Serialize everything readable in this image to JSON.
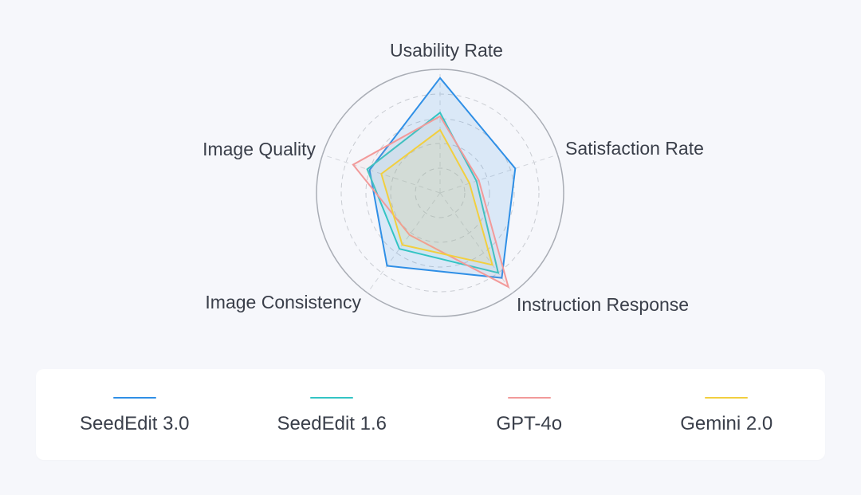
{
  "chart_data": {
    "type": "radar",
    "axes": [
      "Usability Rate",
      "Satisfaction Rate",
      "Instruction Response",
      "Image Consistency",
      "Image Quality"
    ],
    "series": [
      {
        "name": "SeedEdit 3.0",
        "color": "#2f8fe6",
        "values": [
          0.93,
          0.64,
          0.85,
          0.73,
          0.6
        ]
      },
      {
        "name": "SeedEdit 1.6",
        "color": "#33c4c4",
        "values": [
          0.65,
          0.31,
          0.8,
          0.56,
          0.62
        ]
      },
      {
        "name": "GPT-4o",
        "color": "#f29a9a",
        "values": [
          0.62,
          0.33,
          0.94,
          0.42,
          0.74
        ]
      },
      {
        "name": "Gemini 2.0",
        "color": "#f2cf3f",
        "values": [
          0.51,
          0.25,
          0.72,
          0.52,
          0.5
        ]
      }
    ],
    "range": [
      0,
      1
    ],
    "grid": true,
    "legend_position": "bottom"
  }
}
